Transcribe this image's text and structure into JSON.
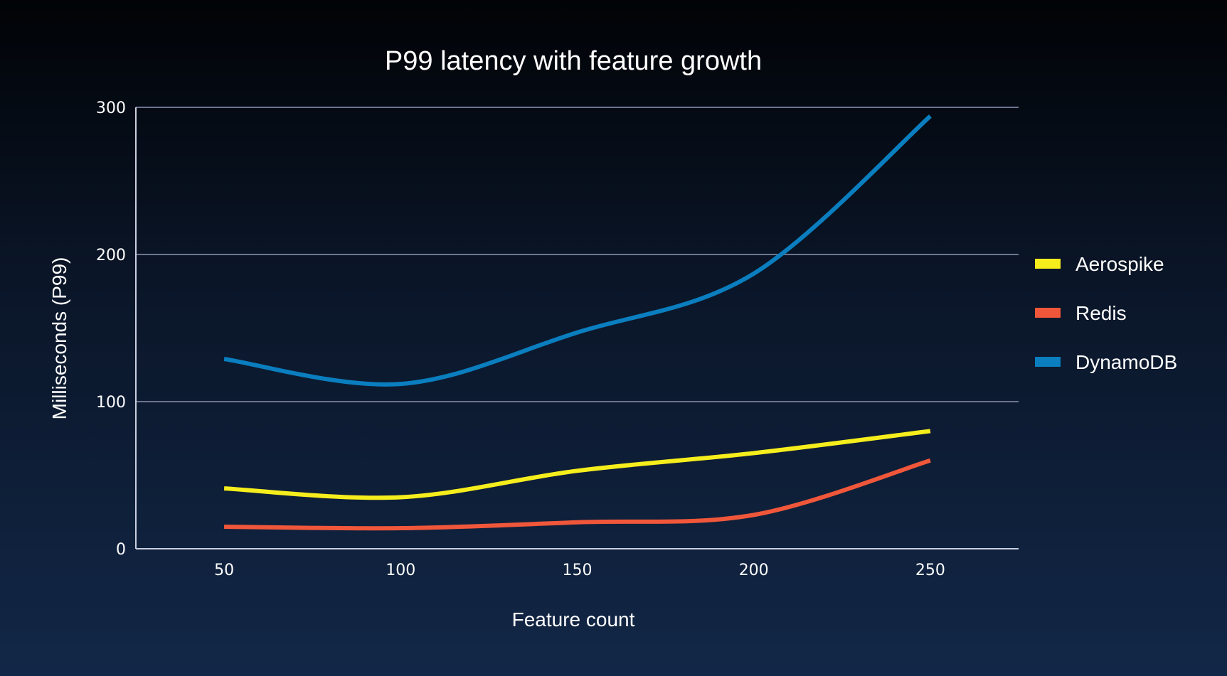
{
  "chart_data": {
    "type": "line",
    "title": "P99 latency with feature growth",
    "xlabel": "Feature count",
    "ylabel": "Milliseconds (P99)",
    "x": [
      50,
      100,
      150,
      200,
      250
    ],
    "xlim": [
      25,
      275
    ],
    "ylim": [
      0,
      300
    ],
    "yticks": [
      0,
      100,
      200,
      300
    ],
    "grid": true,
    "legend_position": "right",
    "series": [
      {
        "name": "Aerospike",
        "color": "#f6ee1c",
        "values": [
          41,
          35,
          53,
          65,
          80
        ]
      },
      {
        "name": "Redis",
        "color": "#f0573a",
        "values": [
          15,
          14,
          18,
          23,
          60
        ]
      },
      {
        "name": "DynamoDB",
        "color": "#0a7ebf",
        "values": [
          129,
          112,
          147,
          187,
          294
        ]
      }
    ]
  }
}
